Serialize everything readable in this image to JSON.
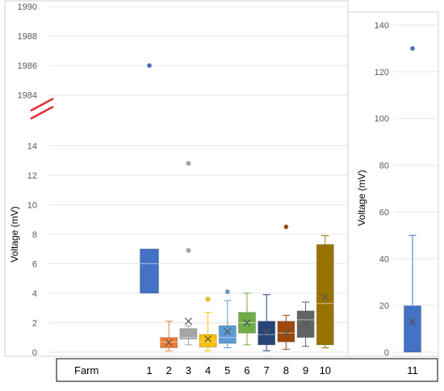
{
  "chart_data": [
    {
      "type": "box",
      "ylabel": "Voltage (mV)",
      "xlabel": "Farm",
      "y_axis_break": {
        "lower_ylim": [
          0,
          15
        ],
        "upper_ylim": [
          1983,
          1990
        ]
      },
      "lower_yticks": [
        "0",
        "2",
        "4",
        "6",
        "8",
        "10",
        "12",
        "14"
      ],
      "upper_yticks": [
        "1984",
        "1986",
        "1988",
        "1990"
      ],
      "categories": [
        "1",
        "2",
        "3",
        "4",
        "5",
        "6",
        "7",
        "8",
        "9",
        "10"
      ],
      "series": [
        {
          "category": "1",
          "color": "#4472C4",
          "q1": 4.0,
          "median": 6.0,
          "q3": 7.0,
          "whisker_low": 4.0,
          "whisker_high": 7.0,
          "mean": null,
          "outliers": [
            1986
          ]
        },
        {
          "category": "2",
          "color": "#ED7D31",
          "q1": 0.3,
          "median": 0.7,
          "q3": 1.0,
          "whisker_low": 0.1,
          "whisker_high": 2.1,
          "mean": 0.65,
          "outliers": []
        },
        {
          "category": "3",
          "color": "#A5A5A5",
          "q1": 0.9,
          "median": 1.0,
          "q3": 1.6,
          "whisker_low": 0.5,
          "whisker_high": 1.8,
          "mean": 2.1,
          "outliers": [
            6.9,
            12.8
          ]
        },
        {
          "category": "4",
          "color": "#FFC000",
          "q1": 0.35,
          "median": 0.7,
          "q3": 1.2,
          "whisker_low": 0.1,
          "whisker_high": 2.7,
          "mean": 0.9,
          "outliers": [
            3.6
          ]
        },
        {
          "category": "5",
          "color": "#5B9BD5",
          "q1": 0.6,
          "median": 1.0,
          "q3": 1.8,
          "whisker_low": 0.3,
          "whisker_high": 3.5,
          "mean": 1.4,
          "outliers": [
            4.1
          ]
        },
        {
          "category": "6",
          "color": "#70AD47",
          "q1": 1.3,
          "median": 2.0,
          "q3": 2.7,
          "whisker_low": 0.5,
          "whisker_high": 4.0,
          "mean": 2.0,
          "outliers": []
        },
        {
          "category": "7",
          "color": "#264478",
          "q1": 0.5,
          "median": 1.2,
          "q3": 2.1,
          "whisker_low": 0.1,
          "whisker_high": 3.9,
          "mean": 1.4,
          "outliers": []
        },
        {
          "category": "8",
          "color": "#9E480E",
          "q1": 0.7,
          "median": 1.3,
          "q3": 2.1,
          "whisker_low": 0.2,
          "whisker_high": 2.5,
          "mean": 1.3,
          "outliers": [
            8.5
          ]
        },
        {
          "category": "9",
          "color": "#636363",
          "q1": 1.0,
          "median": 2.2,
          "q3": 2.8,
          "whisker_low": 0.4,
          "whisker_high": 3.4,
          "mean": 1.95,
          "outliers": []
        },
        {
          "category": "10",
          "color": "#997300",
          "q1": 0.5,
          "median": 3.3,
          "q3": 7.3,
          "whisker_low": 0.3,
          "whisker_high": 7.9,
          "mean": 3.75,
          "outliers": []
        }
      ]
    },
    {
      "type": "box",
      "ylabel": "Voltage (mV)",
      "ylim": [
        0,
        140
      ],
      "yticks": [
        "0",
        "20",
        "40",
        "60",
        "80",
        "100",
        "120",
        "140"
      ],
      "categories": [
        "11"
      ],
      "series": [
        {
          "category": "11",
          "color": "#4472C4",
          "q1": 0,
          "median": 20,
          "q3": 20,
          "whisker_low": 0,
          "whisker_high": 50,
          "mean": 13,
          "outliers": [
            130
          ]
        }
      ]
    }
  ]
}
